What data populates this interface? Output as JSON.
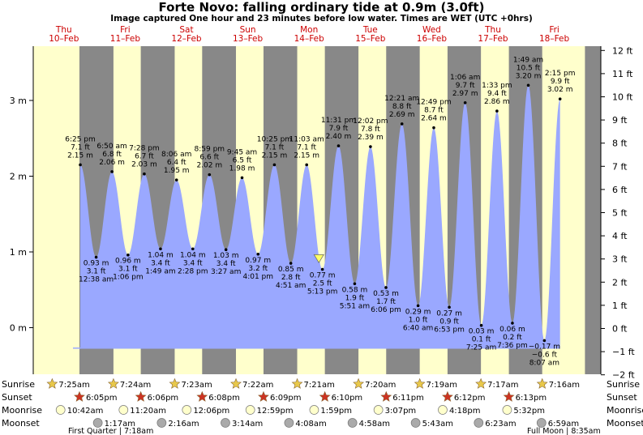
{
  "header": {
    "title": "Forte Novo: falling  ordinary tide at 0.9m (3.0ft)",
    "subtitle": "Image captured One hour and 23 minutes before low water. Times are WET (UTC +0hrs)"
  },
  "colors": {
    "night": "#888888",
    "day": "#ffffcc",
    "tide_fill": "#9aa8ff",
    "day_label": "#cc0000",
    "marker": "#ffff66"
  },
  "chart_data": {
    "type": "area",
    "title": "Forte Novo: falling  ordinary tide at 0.9m (3.0ft)",
    "ylabel_left_unit": "m",
    "ylabel_right_unit": "ft",
    "ylim_m": [
      -0.3,
      3.7
    ],
    "left_ticks": [
      {
        "v": 0,
        "label": "0 m"
      },
      {
        "v": 1,
        "label": "1 m"
      },
      {
        "v": 2,
        "label": "2 m"
      },
      {
        "v": 3,
        "label": "3 m"
      }
    ],
    "right_ticks": [
      {
        "ft": -2,
        "label": "−2 ft"
      },
      {
        "ft": -1,
        "label": "−1 ft"
      },
      {
        "ft": 0,
        "label": "0 ft"
      },
      {
        "ft": 1,
        "label": "1 ft"
      },
      {
        "ft": 2,
        "label": "2 ft"
      },
      {
        "ft": 3,
        "label": "3 ft"
      },
      {
        "ft": 4,
        "label": "4 ft"
      },
      {
        "ft": 5,
        "label": "5 ft"
      },
      {
        "ft": 6,
        "label": "6 ft"
      },
      {
        "ft": 7,
        "label": "7 ft"
      },
      {
        "ft": 8,
        "label": "8 ft"
      },
      {
        "ft": 9,
        "label": "9 ft"
      },
      {
        "ft": 10,
        "label": "10 ft"
      },
      {
        "ft": 11,
        "label": "11 ft"
      },
      {
        "ft": 12,
        "label": "12 ft"
      }
    ],
    "days": [
      {
        "dow": "Thu",
        "date": "10–Feb"
      },
      {
        "dow": "Fri",
        "date": "11–Feb"
      },
      {
        "dow": "Sat",
        "date": "12–Feb"
      },
      {
        "dow": "Sun",
        "date": "13–Feb"
      },
      {
        "dow": "Mon",
        "date": "14–Feb"
      },
      {
        "dow": "Tue",
        "date": "15–Feb"
      },
      {
        "dow": "Wed",
        "date": "16–Feb"
      },
      {
        "dow": "Thu",
        "date": "17–Feb"
      },
      {
        "dow": "Fri",
        "date": "18–Feb"
      }
    ],
    "tides": [
      {
        "type": "high",
        "time": "6:25 pm",
        "ft": "7.1 ft",
        "m": 2.15,
        "mlabel": "2.15 m",
        "day": 0,
        "hour": 18.42
      },
      {
        "type": "low",
        "time": "12:38 am",
        "ft": "3.1 ft",
        "m": 0.93,
        "mlabel": "0.93 m",
        "day": 1,
        "hour": 0.63
      },
      {
        "type": "high",
        "time": "6:50 am",
        "ft": "6.8 ft",
        "m": 2.06,
        "mlabel": "2.06 m",
        "day": 1,
        "hour": 6.83
      },
      {
        "type": "low",
        "time": "1:06 pm",
        "ft": "3.1 ft",
        "m": 0.96,
        "mlabel": "0.96 m",
        "day": 1,
        "hour": 13.1
      },
      {
        "type": "high",
        "time": "7:28 pm",
        "ft": "6.7 ft",
        "m": 2.03,
        "mlabel": "2.03 m",
        "day": 1,
        "hour": 19.47
      },
      {
        "type": "low",
        "time": "1:49 am",
        "ft": "3.4 ft",
        "m": 1.04,
        "mlabel": "1.04 m",
        "day": 2,
        "hour": 1.82
      },
      {
        "type": "high",
        "time": "8:06 am",
        "ft": "6.4 ft",
        "m": 1.95,
        "mlabel": "1.95 m",
        "day": 2,
        "hour": 8.1
      },
      {
        "type": "low",
        "time": "2:28 pm",
        "ft": "3.4 ft",
        "m": 1.04,
        "mlabel": "1.04 m",
        "day": 2,
        "hour": 14.47
      },
      {
        "type": "high",
        "time": "8:59 pm",
        "ft": "6.6 ft",
        "m": 2.02,
        "mlabel": "2.02 m",
        "day": 2,
        "hour": 20.98
      },
      {
        "type": "low",
        "time": "3:27 am",
        "ft": "3.4 ft",
        "m": 1.03,
        "mlabel": "1.03 m",
        "day": 3,
        "hour": 3.45
      },
      {
        "type": "high",
        "time": "9:45 am",
        "ft": "6.5 ft",
        "m": 1.98,
        "mlabel": "1.98 m",
        "day": 3,
        "hour": 9.75
      },
      {
        "type": "low",
        "time": "4:01 pm",
        "ft": "3.2 ft",
        "m": 0.97,
        "mlabel": "0.97 m",
        "day": 3,
        "hour": 16.02
      },
      {
        "type": "high",
        "time": "10:25 pm",
        "ft": "7.1 ft",
        "m": 2.15,
        "mlabel": "2.15 m",
        "day": 3,
        "hour": 22.42
      },
      {
        "type": "low",
        "time": "4:51 am",
        "ft": "2.8 ft",
        "m": 0.85,
        "mlabel": "0.85 m",
        "day": 4,
        "hour": 4.85
      },
      {
        "type": "high",
        "time": "11:03 am",
        "ft": "7.1 ft",
        "m": 2.15,
        "mlabel": "2.15 m",
        "day": 4,
        "hour": 11.05
      },
      {
        "type": "low",
        "time": "5:13 pm",
        "ft": "2.5 ft",
        "m": 0.77,
        "mlabel": "0.77 m",
        "day": 4,
        "hour": 17.22
      },
      {
        "type": "high",
        "time": "11:31 pm",
        "ft": "7.9 ft",
        "m": 2.4,
        "mlabel": "2.40 m",
        "day": 4,
        "hour": 23.52
      },
      {
        "type": "low",
        "time": "5:51 am",
        "ft": "1.9 ft",
        "m": 0.58,
        "mlabel": "0.58 m",
        "day": 5,
        "hour": 5.85
      },
      {
        "type": "high",
        "time": "12:02 pm",
        "ft": "7.8 ft",
        "m": 2.39,
        "mlabel": "2.39 m",
        "day": 5,
        "hour": 12.03
      },
      {
        "type": "low",
        "time": "6:06 pm",
        "ft": "1.7 ft",
        "m": 0.53,
        "mlabel": "0.53 m",
        "day": 5,
        "hour": 18.1
      },
      {
        "type": "high",
        "time": "12:21 am",
        "ft": "8.8 ft",
        "m": 2.69,
        "mlabel": "2.69 m",
        "day": 6,
        "hour": 0.35
      },
      {
        "type": "low",
        "time": "6:40 am",
        "ft": "1.0 ft",
        "m": 0.29,
        "mlabel": "0.29 m",
        "day": 6,
        "hour": 6.67
      },
      {
        "type": "high",
        "time": "12:49 pm",
        "ft": "8.7 ft",
        "m": 2.64,
        "mlabel": "2.64 m",
        "day": 6,
        "hour": 12.82
      },
      {
        "type": "low",
        "time": "6:53 pm",
        "ft": "0.9 ft",
        "m": 0.27,
        "mlabel": "0.27 m",
        "day": 6,
        "hour": 18.88
      },
      {
        "type": "high",
        "time": "1:06 am",
        "ft": "9.7 ft",
        "m": 2.97,
        "mlabel": "2.97 m",
        "day": 7,
        "hour": 1.1
      },
      {
        "type": "low",
        "time": "7:25 am",
        "ft": "0.1 ft",
        "m": 0.03,
        "mlabel": "0.03 m",
        "day": 7,
        "hour": 7.42
      },
      {
        "type": "high",
        "time": "1:33 pm",
        "ft": "9.4 ft",
        "m": 2.86,
        "mlabel": "2.86 m",
        "day": 7,
        "hour": 13.55
      },
      {
        "type": "low",
        "time": "7:36 pm",
        "ft": "0.2 ft",
        "m": 0.06,
        "mlabel": "0.06 m",
        "day": 7,
        "hour": 19.6
      },
      {
        "type": "high",
        "time": "1:49 am",
        "ft": "10.5 ft",
        "m": 3.2,
        "mlabel": "3.20 m",
        "day": 8,
        "hour": 1.82
      },
      {
        "type": "low",
        "time": "8:07 am",
        "ft": "−0.6 ft",
        "m": -0.17,
        "mlabel": "−0.17 m",
        "day": 8,
        "hour": 8.12
      },
      {
        "type": "high",
        "time": "2:15 pm",
        "ft": "9.9 ft",
        "m": 3.02,
        "mlabel": "3.02 m",
        "day": 8,
        "hour": 14.25
      }
    ],
    "current": {
      "m": 0.9,
      "day": 4,
      "hour": 15.83
    },
    "day_periods": [
      {
        "start": 0,
        "end": 18.08,
        "day": 0
      },
      {
        "start": 7.4,
        "end": 18.1,
        "day": 1
      },
      {
        "start": 7.38,
        "end": 18.13,
        "day": 2
      },
      {
        "start": 7.37,
        "end": 18.15,
        "day": 3
      },
      {
        "start": 7.35,
        "end": 18.17,
        "day": 4
      },
      {
        "start": 7.33,
        "end": 18.18,
        "day": 5
      },
      {
        "start": 7.32,
        "end": 18.2,
        "day": 6
      },
      {
        "start": 7.28,
        "end": 18.22,
        "day": 7
      },
      {
        "start": 7.27,
        "end": 24.0,
        "day": 8
      }
    ],
    "sunrise": [
      {
        "time": "7:25am",
        "day": 0,
        "hour": 7.42
      },
      {
        "time": "7:24am",
        "day": 1,
        "hour": 7.4
      },
      {
        "time": "7:23am",
        "day": 2,
        "hour": 7.38
      },
      {
        "time": "7:22am",
        "day": 3,
        "hour": 7.37
      },
      {
        "time": "7:21am",
        "day": 4,
        "hour": 7.35
      },
      {
        "time": "7:20am",
        "day": 5,
        "hour": 7.33
      },
      {
        "time": "7:19am",
        "day": 6,
        "hour": 7.32
      },
      {
        "time": "7:17am",
        "day": 7,
        "hour": 7.28
      },
      {
        "time": "7:16am",
        "day": 8,
        "hour": 7.27
      }
    ],
    "sunset": [
      {
        "time": "6:05pm",
        "day": 0,
        "hour": 18.08
      },
      {
        "time": "6:06pm",
        "day": 1,
        "hour": 18.1
      },
      {
        "time": "6:08pm",
        "day": 2,
        "hour": 18.13
      },
      {
        "time": "6:09pm",
        "day": 3,
        "hour": 18.15
      },
      {
        "time": "6:10pm",
        "day": 4,
        "hour": 18.17
      },
      {
        "time": "6:11pm",
        "day": 5,
        "hour": 18.18
      },
      {
        "time": "6:12pm",
        "day": 6,
        "hour": 18.2
      },
      {
        "time": "6:13pm",
        "day": 7,
        "hour": 18.22
      }
    ],
    "moonrise": [
      {
        "time": "10:42am",
        "day": 0,
        "hour": 10.7
      },
      {
        "time": "11:20am",
        "day": 1,
        "hour": 11.33
      },
      {
        "time": "12:06pm",
        "day": 2,
        "hour": 12.1
      },
      {
        "time": "12:59pm",
        "day": 3,
        "hour": 12.98
      },
      {
        "time": "1:59pm",
        "day": 4,
        "hour": 13.98
      },
      {
        "time": "3:07pm",
        "day": 5,
        "hour": 15.12
      },
      {
        "time": "4:18pm",
        "day": 6,
        "hour": 16.3
      },
      {
        "time": "5:32pm",
        "day": 7,
        "hour": 17.53
      }
    ],
    "moonset": [
      {
        "time": "1:17am",
        "day": 1,
        "hour": 1.28
      },
      {
        "time": "2:16am",
        "day": 2,
        "hour": 2.27
      },
      {
        "time": "3:14am",
        "day": 3,
        "hour": 3.23
      },
      {
        "time": "4:08am",
        "day": 4,
        "hour": 4.13
      },
      {
        "time": "4:58am",
        "day": 5,
        "hour": 4.97
      },
      {
        "time": "5:43am",
        "day": 6,
        "hour": 5.72
      },
      {
        "time": "6:23am",
        "day": 7,
        "hour": 6.38
      },
      {
        "time": "6:59am",
        "day": 8,
        "hour": 6.98
      }
    ],
    "row_labels": {
      "sunrise": "Sunrise",
      "sunset": "Sunset",
      "moonrise": "Moonrise",
      "moonset": "Moonset"
    },
    "moon_phases": [
      {
        "text": "First Quarter | 7:18am"
      },
      {
        "text": "Full Moon | 8:35am"
      }
    ]
  }
}
